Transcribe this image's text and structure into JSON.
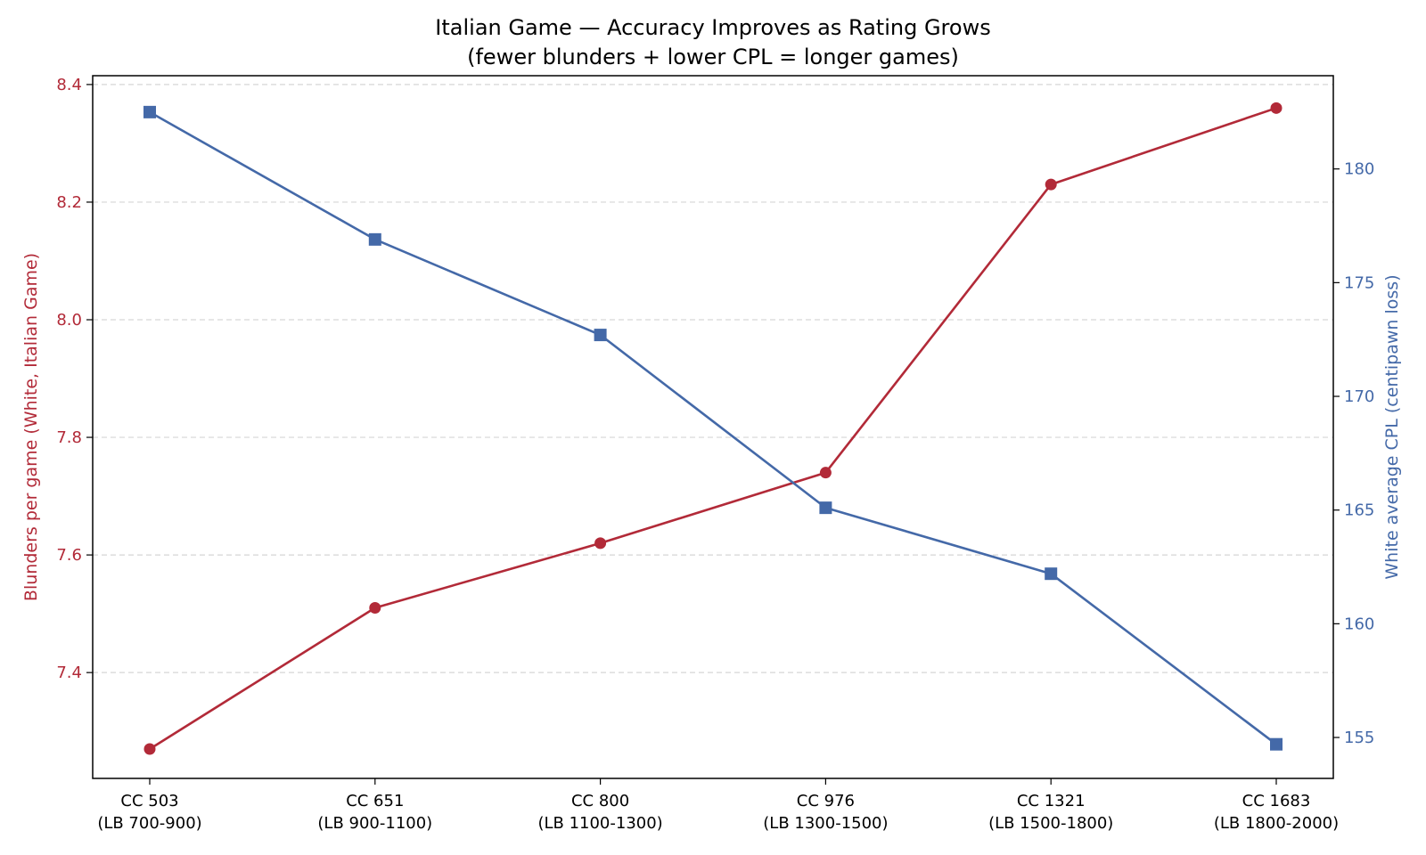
{
  "chart_data": {
    "type": "line",
    "title": "Italian Game — Accuracy Improves as Rating Grows",
    "subtitle": "(fewer blunders + lower CPL = longer games)",
    "categories": [
      [
        "CC 503",
        "(LB 700-900)"
      ],
      [
        "CC 651",
        "(LB 900-1100)"
      ],
      [
        "CC 800",
        "(LB 1100-1300)"
      ],
      [
        "CC 976",
        "(LB 1300-1500)"
      ],
      [
        "CC 1321",
        "(LB 1500-1800)"
      ],
      [
        "CC 1683",
        "(LB 1800-2000)"
      ]
    ],
    "ylabel_left": "Blunders per game (White, Italian Game)",
    "ylabel_right": "White average CPL (centipawn loss)",
    "ylim_left": [
      7.22,
      8.415
    ],
    "ylim_right": [
      153.2,
      184.1
    ],
    "yticks_left": [
      7.4,
      7.6,
      7.8,
      8.0,
      8.2,
      8.4
    ],
    "yticks_right": [
      155,
      160,
      165,
      170,
      175,
      180
    ],
    "grid": "horizontal dashed (left axis)",
    "series": [
      {
        "axis": "left",
        "marker": "circle",
        "color": "#b22a38",
        "values": [
          7.27,
          7.51,
          7.62,
          7.74,
          8.23,
          8.36
        ]
      },
      {
        "axis": "right",
        "marker": "square",
        "color": "#4469a8",
        "values": [
          182.5,
          176.9,
          172.7,
          165.1,
          162.2,
          154.7
        ]
      }
    ]
  }
}
